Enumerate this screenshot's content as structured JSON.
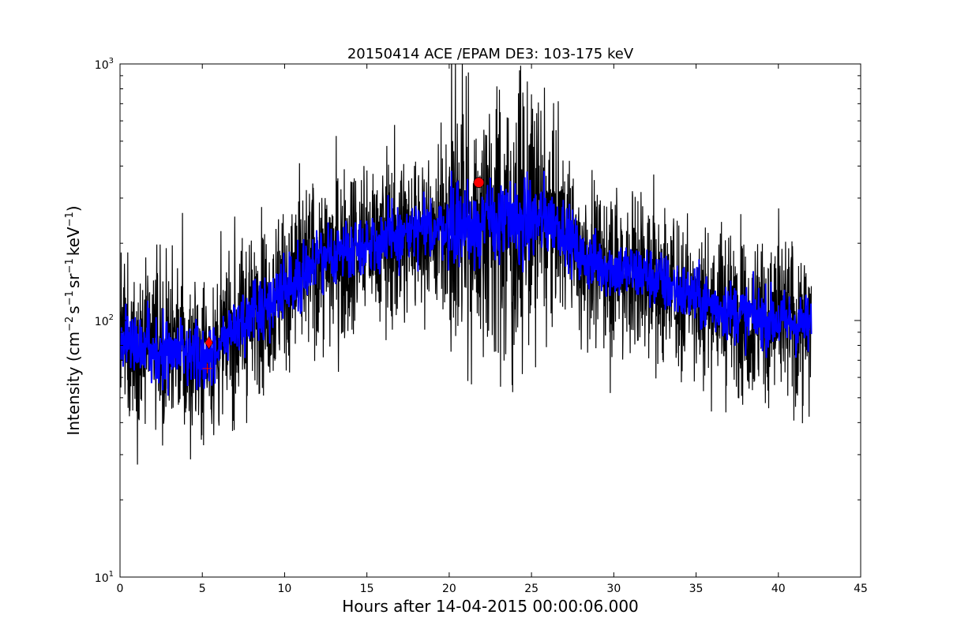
{
  "chart_data": {
    "type": "line",
    "title": "20150414 ACE /EPAM DE3: 103-175 keV",
    "xlabel": "Hours after 14-04-2015 00:00:06.000",
    "ylabel": {
      "prefix": "Intensity (cm",
      "sup1": "−2",
      "mid1": "s",
      "sup2": "−1",
      "mid2": "sr",
      "sup3": "−1",
      "mid3": "keV",
      "sup4": "−1",
      "suffix": ")"
    },
    "x_scale": "linear",
    "y_scale": "log",
    "xlim": [
      0,
      45
    ],
    "ylim": [
      10,
      1000
    ],
    "x_ticks": [
      0,
      5,
      10,
      15,
      20,
      25,
      30,
      35,
      40,
      45
    ],
    "x_tick_labels": [
      "0",
      "5",
      "10",
      "15",
      "20",
      "25",
      "30",
      "35",
      "40",
      "45"
    ],
    "y_ticks": [
      10,
      100,
      1000
    ],
    "y_tick_labels": [
      {
        "base": "10",
        "exp": "1"
      },
      {
        "base": "10",
        "exp": "2"
      },
      {
        "base": "10",
        "exp": "3"
      }
    ],
    "grid": false,
    "legend": "none",
    "series": [
      {
        "color": "#000000",
        "style": "raw-data-spiky",
        "x_range": [
          0,
          42
        ],
        "trend_x": [
          0,
          2,
          4,
          5,
          6,
          8,
          10,
          12,
          14,
          16,
          18,
          20,
          22,
          24,
          26,
          27,
          28,
          30,
          32,
          34,
          36,
          38,
          40,
          42
        ],
        "trend_y": [
          85,
          78,
          72,
          70,
          80,
          105,
          135,
          170,
          195,
          205,
          220,
          235,
          240,
          240,
          250,
          230,
          175,
          160,
          150,
          130,
          115,
          105,
          100,
          95
        ]
      },
      {
        "color": "#0000ff",
        "style": "smoothed-data",
        "x_range": [
          0,
          42
        ],
        "trend_x": [
          0,
          2,
          4,
          5,
          6,
          8,
          10,
          12,
          14,
          16,
          18,
          20,
          22,
          24,
          26,
          27,
          28,
          30,
          32,
          34,
          36,
          38,
          40,
          42
        ],
        "trend_y": [
          85,
          78,
          72,
          70,
          80,
          105,
          135,
          170,
          195,
          205,
          220,
          235,
          240,
          240,
          250,
          230,
          175,
          160,
          150,
          130,
          115,
          105,
          100,
          95
        ]
      }
    ],
    "markers": [
      {
        "type": "diamond",
        "x": 5.4,
        "y": 82,
        "color": "#ff0000"
      },
      {
        "type": "plus",
        "x": 5.3,
        "y": 65,
        "color": "#ff0000"
      },
      {
        "type": "circle",
        "x": 21.8,
        "y": 345,
        "color": "#ff0000"
      }
    ]
  }
}
